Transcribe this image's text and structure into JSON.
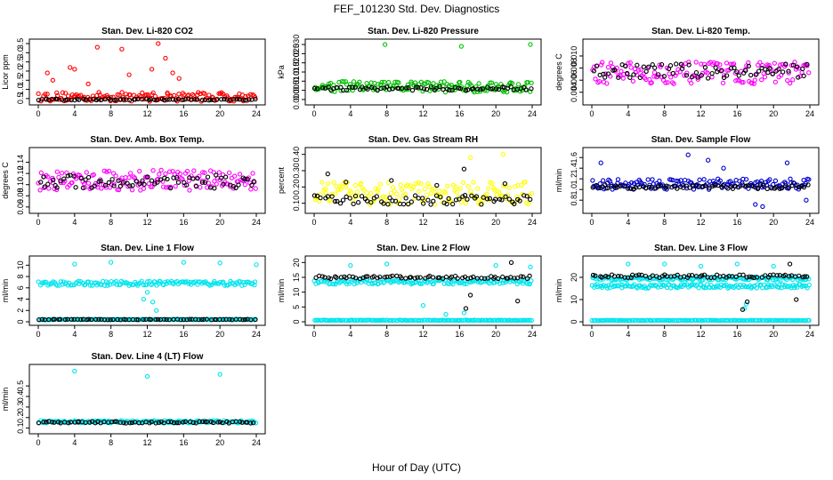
{
  "figure": {
    "title": "FEF_101230  Std. Dev. Diagnostics",
    "xlabel": "Hour of Day (UTC)"
  },
  "chart_data": [
    {
      "type": "scatter",
      "title": "Stan. Dev. Li-820 CO2",
      "ylabel": "Licor ppm",
      "xlim": [
        0,
        24
      ],
      "ylim": [
        0.35,
        3.55
      ],
      "xticks": [
        "0",
        "4",
        "8",
        "12",
        "16",
        "20",
        "24"
      ],
      "yticks": [
        "0.5",
        "1.0",
        "1.5",
        "2.0",
        "2.5",
        "3.0",
        "3.5"
      ],
      "series": [
        {
          "color": "#ff0000",
          "base": 0.6,
          "spread": 0.25,
          "outliers": [
            [
              1.0,
              1.9
            ],
            [
              1.6,
              1.5
            ],
            [
              3.5,
              2.2
            ],
            [
              4.0,
              2.1
            ],
            [
              5.5,
              1.3
            ],
            [
              6.5,
              3.3
            ],
            [
              9.2,
              3.2
            ],
            [
              10.0,
              1.8
            ],
            [
              12.5,
              2.1
            ],
            [
              13.2,
              3.5
            ],
            [
              14.0,
              2.7
            ],
            [
              14.8,
              1.9
            ],
            [
              15.5,
              1.6
            ]
          ]
        },
        {
          "color": "#000000",
          "base": 0.45,
          "spread": 0.04,
          "outliers": []
        }
      ]
    },
    {
      "type": "scatter",
      "title": "Stan. Dev. Li-820 Pressure",
      "ylabel": "kPa",
      "xlim": [
        0,
        24
      ],
      "ylim": [
        -0.001,
        0.031
      ],
      "xticks": [
        "0",
        "4",
        "8",
        "12",
        "16",
        "20",
        "24"
      ],
      "yticks": [
        "0.000",
        "0.005",
        "0.010",
        "0.015",
        "0.020",
        "0.025",
        "0.030"
      ],
      "series": [
        {
          "color": "#00c000",
          "base": 0.007,
          "spread": 0.003,
          "outliers": [
            [
              7.8,
              0.03
            ],
            [
              16.2,
              0.029
            ],
            [
              23.8,
              0.03
            ]
          ]
        },
        {
          "color": "#000000",
          "base": 0.006,
          "spread": 0.001,
          "outliers": []
        }
      ]
    },
    {
      "type": "scatter",
      "title": "Stan. Dev. Li-820 Temp.",
      "ylabel": "degrees C",
      "xlim": [
        0,
        24
      ],
      "ylim": [
        0.0025,
        0.0122
      ],
      "xticks": [
        "0",
        "4",
        "8",
        "12",
        "16",
        "20",
        "24"
      ],
      "yticks": [
        "0.004",
        "0.006",
        "0.008",
        "0.010"
      ],
      "series": [
        {
          "color": "#ff00ff",
          "base": 0.0072,
          "spread": 0.0018,
          "outliers": []
        },
        {
          "color": "#000000",
          "base": 0.0075,
          "spread": 0.0012,
          "outliers": []
        }
      ]
    },
    {
      "type": "scatter",
      "title": "Stan. Dev. Amb. Box Temp.",
      "ylabel": "degrees C",
      "xlim": [
        0,
        24
      ],
      "ylim": [
        0.055,
        0.16
      ],
      "xticks": [
        "0",
        "4",
        "8",
        "12",
        "16",
        "20",
        "24"
      ],
      "yticks": [
        "0.06",
        "0.08",
        "0.10",
        "0.12",
        "0.14"
      ],
      "series": [
        {
          "color": "#ff00ff",
          "base": 0.108,
          "spread": 0.018,
          "outliers": []
        },
        {
          "color": "#000000",
          "base": 0.105,
          "spread": 0.012,
          "outliers": []
        }
      ]
    },
    {
      "type": "scatter",
      "title": "Stan. Dev. Gas Stream RH",
      "ylabel": "percent",
      "xlim": [
        0,
        24
      ],
      "ylim": [
        0.06,
        0.42
      ],
      "xticks": [
        "0",
        "4",
        "8",
        "12",
        "16",
        "20",
        "24"
      ],
      "yticks": [
        "0.10",
        "0.20",
        "0.30",
        "0.40"
      ],
      "series": [
        {
          "color": "#ffff00",
          "base": 0.16,
          "spread": 0.07,
          "outliers": [
            [
              17.2,
              0.38
            ],
            [
              20.8,
              0.4
            ]
          ]
        },
        {
          "color": "#000000",
          "base": 0.12,
          "spread": 0.03,
          "outliers": [
            [
              1.5,
              0.28
            ],
            [
              3.5,
              0.23
            ],
            [
              8.5,
              0.24
            ],
            [
              13.5,
              0.21
            ],
            [
              16.5,
              0.31
            ],
            [
              21.0,
              0.22
            ]
          ]
        }
      ]
    },
    {
      "type": "scatter",
      "title": "Stan. Dev. Sample Flow",
      "ylabel": "ml/min",
      "xlim": [
        0,
        24
      ],
      "ylim": [
        0.62,
        1.72
      ],
      "xticks": [
        "0",
        "4",
        "8",
        "12",
        "16",
        "20",
        "24"
      ],
      "yticks": [
        "0.8",
        "1.0",
        "1.2",
        "1.4",
        "1.6"
      ],
      "series": [
        {
          "color": "#0000cc",
          "base": 1.1,
          "spread": 0.1,
          "outliers": [
            [
              1.0,
              1.5
            ],
            [
              10.6,
              1.65
            ],
            [
              12.8,
              1.55
            ],
            [
              14.5,
              1.4
            ],
            [
              18.0,
              0.72
            ],
            [
              18.8,
              0.68
            ],
            [
              21.5,
              1.5
            ],
            [
              23.6,
              0.8
            ]
          ]
        },
        {
          "color": "#000000",
          "base": 1.05,
          "spread": 0.04,
          "outliers": []
        }
      ]
    },
    {
      "type": "scatter",
      "title": "Stan. Dev. Line 1 Flow",
      "ylabel": "ml/min",
      "xlim": [
        0,
        24
      ],
      "ylim": [
        0,
        11
      ],
      "xticks": [
        "0",
        "4",
        "8",
        "12",
        "16",
        "20",
        "24"
      ],
      "yticks": [
        "0",
        "2",
        "4",
        "6",
        "8",
        "10"
      ],
      "series": [
        {
          "color": "#00e5ee",
          "base": 6.8,
          "spread": 0.4,
          "outliers": [
            [
              4.0,
              10.2
            ],
            [
              8.0,
              10.5
            ],
            [
              11.6,
              4.0
            ],
            [
              12.0,
              5.2
            ],
            [
              12.6,
              3.5
            ],
            [
              13.0,
              2.0
            ],
            [
              16.0,
              10.5
            ],
            [
              20.0,
              10.4
            ],
            [
              24.0,
              10.1
            ]
          ]
        },
        {
          "color": "#00e5ee",
          "base": 0.4,
          "spread": 0.05,
          "outliers": []
        },
        {
          "color": "#000000",
          "base": 0.4,
          "spread": 0.05,
          "outliers": []
        }
      ]
    },
    {
      "type": "scatter",
      "title": "Stan. Dev. Line 2 Flow",
      "ylabel": "ml/min",
      "xlim": [
        0,
        24
      ],
      "ylim": [
        0,
        21
      ],
      "xticks": [
        "0",
        "4",
        "8",
        "12",
        "16",
        "20",
        "24"
      ],
      "yticks": [
        "0",
        "5",
        "10",
        "15",
        "20"
      ],
      "series": [
        {
          "color": "#00e5ee",
          "base": 13.5,
          "spread": 0.8,
          "outliers": [
            [
              4.0,
              19.0
            ],
            [
              8.0,
              19.5
            ],
            [
              12.0,
              5.5
            ],
            [
              14.5,
              2.5
            ],
            [
              16.5,
              3.0
            ],
            [
              20.0,
              19.0
            ],
            [
              23.8,
              18.5
            ]
          ]
        },
        {
          "color": "#00e5ee",
          "base": 0.5,
          "spread": 0.1,
          "outliers": []
        },
        {
          "color": "#000000",
          "base": 15.0,
          "spread": 0.5,
          "outliers": [
            [
              16.7,
              4.5
            ],
            [
              17.2,
              9.0
            ],
            [
              21.7,
              20.0
            ],
            [
              22.4,
              7.0
            ]
          ]
        }
      ]
    },
    {
      "type": "scatter",
      "title": "Stan. Dev. Line 3 Flow",
      "ylabel": "ml/min",
      "xlim": [
        0,
        24
      ],
      "ylim": [
        0,
        28
      ],
      "xticks": [
        "0",
        "4",
        "8",
        "12",
        "16",
        "20",
        "24"
      ],
      "yticks": [
        "0",
        "10",
        "20"
      ],
      "series": [
        {
          "color": "#00e5ee",
          "base": 16.0,
          "spread": 0.9,
          "outliers": [
            [
              4.0,
              26
            ],
            [
              8.0,
              26
            ],
            [
              12.0,
              25
            ],
            [
              16.0,
              26
            ],
            [
              20.0,
              25
            ],
            [
              16.8,
              6
            ],
            [
              17.0,
              8
            ]
          ]
        },
        {
          "color": "#00e5ee",
          "base": 19.5,
          "spread": 0.8,
          "outliers": []
        },
        {
          "color": "#00e5ee",
          "base": 0.6,
          "spread": 0.1,
          "outliers": []
        },
        {
          "color": "#000000",
          "base": 20.5,
          "spread": 0.7,
          "outliers": [
            [
              16.6,
              5.5
            ],
            [
              17.1,
              9.0
            ],
            [
              21.8,
              26.0
            ],
            [
              22.5,
              10.0
            ]
          ]
        }
      ]
    },
    {
      "type": "scatter",
      "title": "Stan. Dev. Line 4 (LT) Flow",
      "ylabel": "ml/min",
      "xlim": [
        0,
        24
      ],
      "ylim": [
        0.08,
        0.67
      ],
      "xticks": [
        "0",
        "4",
        "8",
        "12",
        "16",
        "20",
        "24"
      ],
      "yticks": [
        "0.1",
        "0.2",
        "0.3",
        "0.4",
        "0.5"
      ],
      "series": [
        {
          "color": "#00e5ee",
          "base": 0.16,
          "spread": 0.012,
          "outliers": [
            [
              4.0,
              0.64
            ],
            [
              12.0,
              0.59
            ],
            [
              20.0,
              0.61
            ]
          ]
        },
        {
          "color": "#000000",
          "base": 0.155,
          "spread": 0.008,
          "outliers": []
        }
      ]
    }
  ]
}
